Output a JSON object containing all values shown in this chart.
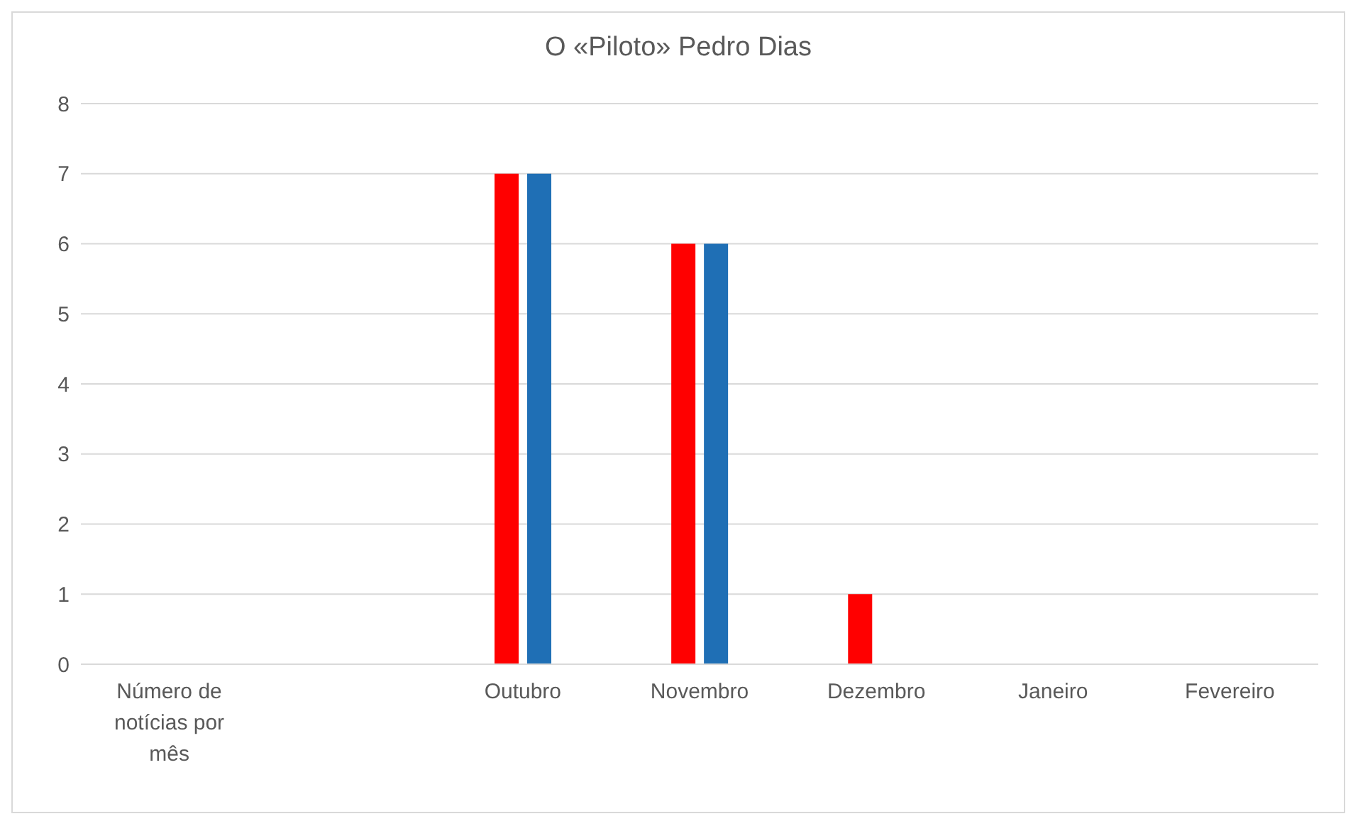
{
  "chart_data": {
    "type": "bar",
    "title": "O «Piloto» Pedro Dias",
    "categories": [
      "Número de notícias por mês",
      null,
      "Outubro",
      "Novembro",
      "Dezembro",
      "Janeiro",
      "Fevereiro"
    ],
    "series": [
      {
        "color": "#ff0000",
        "values": [
          null,
          null,
          7,
          6,
          1,
          null,
          null
        ]
      },
      {
        "color": "#1f6fb5",
        "values": [
          null,
          null,
          7,
          6,
          null,
          null,
          null
        ]
      }
    ],
    "ylim": [
      0,
      8
    ],
    "yticks": [
      0,
      1,
      2,
      3,
      4,
      5,
      6,
      7,
      8
    ],
    "grid": "y",
    "legend": false
  }
}
